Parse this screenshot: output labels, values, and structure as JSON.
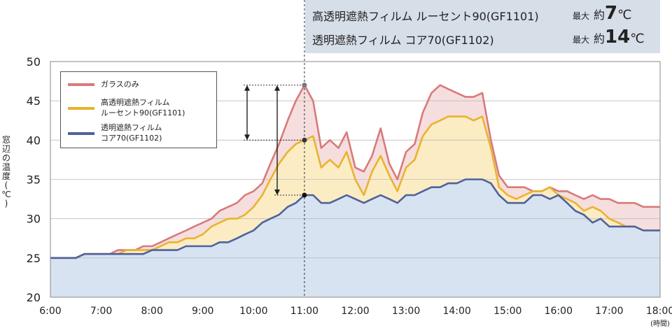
{
  "infobox": {
    "line1_label": "高透明遮熱フィルム ルーセント90(GF1101)",
    "line1_max_prefix": "最大",
    "line1_approx": "約",
    "line1_value": "7",
    "line1_unit": "℃",
    "line2_label": "透明遮熱フィルム コア70(GF1102)",
    "line2_max_prefix": "最大",
    "line2_approx": "約",
    "line2_value": "14",
    "line2_unit": "℃"
  },
  "legend": {
    "items": [
      {
        "label_line1": "ガラスのみ",
        "label_line2": ""
      },
      {
        "label_line1": "高透明遮熱フィルム",
        "label_line2": "ルーセント90(GF1101)"
      },
      {
        "label_line1": "透明遮熱フィルム",
        "label_line2": "コア70(GF1102)"
      }
    ]
  },
  "ylabel_chars": [
    "窓",
    "辺",
    "の",
    "温",
    "度",
    "(",
    "℃",
    ")"
  ],
  "colors": {
    "glass": "#d87a7a",
    "glass_fill": "#f6dede",
    "lucent": "#e8b42e",
    "lucent_fill": "#fbecc4",
    "core": "#4f629a",
    "core_fill": "#d7e3f1",
    "grid": "#bdbdbd"
  },
  "chart_data": {
    "type": "area",
    "x": [
      6.0,
      6.17,
      6.33,
      6.5,
      6.67,
      6.83,
      7.0,
      7.17,
      7.33,
      7.5,
      7.67,
      7.83,
      8.0,
      8.17,
      8.33,
      8.5,
      8.67,
      8.83,
      9.0,
      9.17,
      9.33,
      9.5,
      9.67,
      9.83,
      10.0,
      10.17,
      10.33,
      10.5,
      10.67,
      10.83,
      11.0,
      11.17,
      11.33,
      11.5,
      11.67,
      11.83,
      12.0,
      12.17,
      12.33,
      12.5,
      12.67,
      12.83,
      13.0,
      13.17,
      13.33,
      13.5,
      13.67,
      13.83,
      14.0,
      14.17,
      14.33,
      14.5,
      14.67,
      14.83,
      15.0,
      15.17,
      15.33,
      15.5,
      15.67,
      15.83,
      16.0,
      16.17,
      16.33,
      16.5,
      16.67,
      16.83,
      17.0,
      17.17,
      17.33,
      17.5,
      17.67,
      17.83,
      18.0
    ],
    "series": [
      {
        "name": "ガラスのみ",
        "values": [
          25,
          25,
          25,
          25,
          25.5,
          25.5,
          25.5,
          25.5,
          26,
          26,
          26,
          26.5,
          26.5,
          27,
          27.5,
          28,
          28.5,
          29,
          29.5,
          30,
          31,
          31.5,
          32,
          33,
          33.5,
          34.5,
          37,
          39.5,
          42.5,
          45,
          47,
          45,
          39,
          40,
          39,
          41,
          36.5,
          36,
          38,
          41.5,
          37,
          35,
          38.5,
          39.5,
          43.5,
          46,
          47,
          46.5,
          46,
          45.5,
          45.5,
          46,
          40,
          35.5,
          34,
          34,
          34,
          33.5,
          33.5,
          34,
          33.5,
          33.5,
          33,
          32.5,
          33,
          32.5,
          32.5,
          32,
          32,
          32,
          31.5,
          31.5,
          31.5
        ]
      },
      {
        "name": "高透明遮熱フィルム ルーセント90(GF1101)",
        "values": [
          25,
          25,
          25,
          25,
          25.5,
          25.5,
          25.5,
          25.5,
          25.5,
          26,
          26,
          26,
          26,
          26.5,
          27,
          27,
          27.5,
          27.5,
          28,
          29,
          29.5,
          30,
          30,
          30.5,
          31.5,
          33,
          35,
          37,
          38.5,
          39.5,
          40,
          40.5,
          36.5,
          37.5,
          36.5,
          38.5,
          35,
          33,
          36,
          38,
          35.5,
          33.5,
          36.5,
          37.5,
          40.5,
          42,
          42.5,
          43,
          43,
          43,
          42.5,
          43,
          39,
          34,
          33,
          32.5,
          33,
          33.5,
          33.5,
          34,
          33,
          32.5,
          32,
          31,
          31.5,
          31,
          30,
          29.5,
          29,
          29,
          28.5,
          28.5,
          28.5
        ]
      },
      {
        "name": "透明遮熱フィルム コア70(GF1102)",
        "values": [
          25,
          25,
          25,
          25,
          25.5,
          25.5,
          25.5,
          25.5,
          25.5,
          25.5,
          25.5,
          25.5,
          26,
          26,
          26,
          26,
          26.5,
          26.5,
          26.5,
          26.5,
          27,
          27,
          27.5,
          28,
          28.5,
          29.5,
          30,
          30.5,
          31.5,
          32,
          33,
          33,
          32,
          32,
          32.5,
          33,
          32.5,
          32,
          32.5,
          33,
          32.5,
          32,
          33,
          33,
          33.5,
          34,
          34,
          34.5,
          34.5,
          35,
          35,
          35,
          34.5,
          33,
          32,
          32,
          32,
          33,
          33,
          32.5,
          33,
          32,
          31,
          30.5,
          29.5,
          30,
          29,
          29,
          29,
          29,
          28.5,
          28.5,
          28.5
        ]
      }
    ],
    "xticks": [
      "6:00",
      "7:00",
      "8:00",
      "9:00",
      "10:00",
      "11:00",
      "12:00",
      "13:00",
      "14:00",
      "15:00",
      "16:00",
      "17:00",
      "18:00"
    ],
    "xunit": "(時間)",
    "yticks": [
      "20",
      "25",
      "30",
      "35",
      "40",
      "45",
      "50"
    ],
    "xlim": [
      6,
      18
    ],
    "ylim": [
      20,
      50
    ],
    "grid": true,
    "legend_position": "top-left",
    "reference_time": 11.0
  }
}
